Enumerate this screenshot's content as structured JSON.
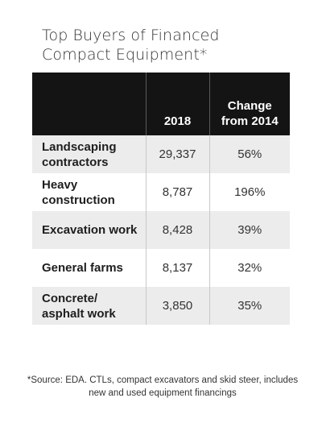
{
  "chart_data": {
    "type": "table",
    "title": "Top Buyers of Financed Compact Equipment*",
    "title_lines": [
      "Top Buyers of Financed",
      "Compact Equipment*"
    ],
    "columns": [
      "",
      "2018",
      "Change from 2014"
    ],
    "header_lines": {
      "col2": [
        "2018"
      ],
      "col3": [
        "Change",
        "from 2014"
      ]
    },
    "rows": [
      {
        "category": "Landscaping contractors",
        "lines": [
          "Landscaping",
          "contractors"
        ],
        "value_2018": 29337,
        "value_2018_text": "29,337",
        "change_from_2014": "56%"
      },
      {
        "category": "Heavy construction",
        "lines": [
          "Heavy",
          "construction"
        ],
        "value_2018": 8787,
        "value_2018_text": "8,787",
        "change_from_2014": "196%"
      },
      {
        "category": "Excavation work",
        "lines": [
          "Excavation work"
        ],
        "value_2018": 8428,
        "value_2018_text": "8,428",
        "change_from_2014": "39%"
      },
      {
        "category": "General farms",
        "lines": [
          "General farms"
        ],
        "value_2018": 8137,
        "value_2018_text": "8,137",
        "change_from_2014": "32%"
      },
      {
        "category": "Concrete/ asphalt work",
        "lines": [
          "Concrete/",
          "asphalt work"
        ],
        "value_2018": 3850,
        "value_2018_text": "3,850",
        "change_from_2014": "35%"
      }
    ],
    "footnote_lines": [
      "*Source: EDA. CTLs, compact excavators and skid steer, includes",
      "new and used equipment financings"
    ]
  },
  "colors": {
    "header_bg": "#141414",
    "header_text": "#ffffff",
    "row_shade": "#ececec",
    "row_plain": "#ffffff"
  }
}
